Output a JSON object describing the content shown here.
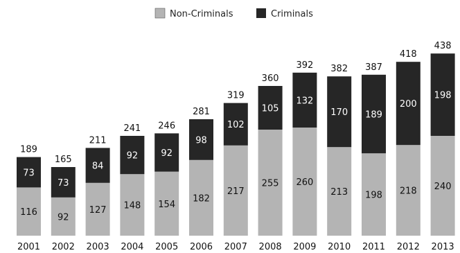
{
  "legend": {
    "items": [
      {
        "label": "Non-Criminals",
        "color": "#b4b4b4"
      },
      {
        "label": "Criminals",
        "color": "#262626"
      }
    ]
  },
  "chart_data": {
    "type": "bar",
    "stacked": true,
    "title": "",
    "xlabel": "",
    "ylabel": "",
    "categories": [
      "2001",
      "2002",
      "2003",
      "2004",
      "2005",
      "2006",
      "2007",
      "2008",
      "2009",
      "2010",
      "2011",
      "2012",
      "2013"
    ],
    "series": [
      {
        "name": "Non-Criminals",
        "color": "#b4b4b4",
        "values": [
          116,
          92,
          127,
          148,
          154,
          182,
          217,
          255,
          260,
          213,
          198,
          218,
          240
        ]
      },
      {
        "name": "Criminals",
        "color": "#262626",
        "values": [
          73,
          73,
          84,
          92,
          92,
          98,
          102,
          105,
          132,
          170,
          189,
          200,
          198
        ]
      }
    ],
    "totals": [
      189,
      165,
      211,
      241,
      246,
      281,
      319,
      360,
      392,
      382,
      387,
      418,
      438
    ],
    "ylim": [
      0,
      440
    ],
    "grid": false,
    "legend_position": "top-center"
  }
}
